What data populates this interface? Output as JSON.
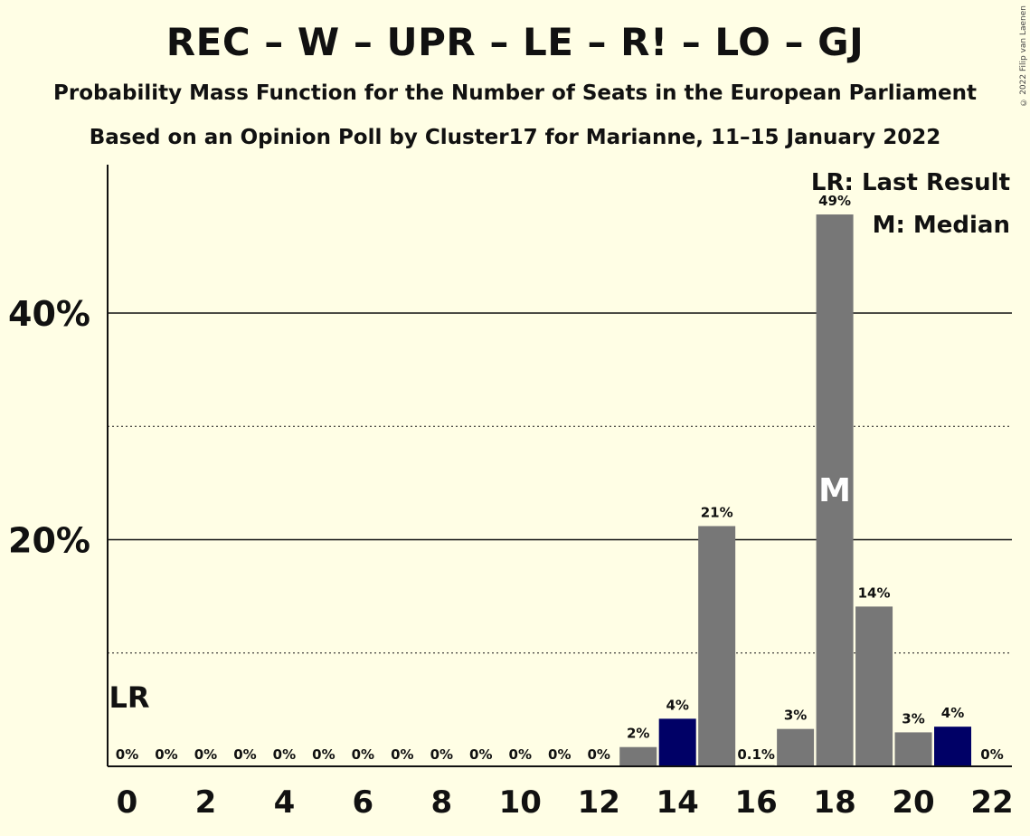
{
  "header": {
    "title": "REC – W – UPR – LE – R! – LO – GJ",
    "subtitle1": "Probability Mass Function for the Number of Seats in the European Parliament",
    "subtitle2": "Based on an Opinion Poll by Cluster17 for Marianne, 11–15 January 2022",
    "copyright": "© 2022 Filip van Laenen"
  },
  "legend": {
    "last_result": "LR: Last Result",
    "median": "M: Median"
  },
  "markers": {
    "last_result_label": "LR",
    "last_result_seat": 0,
    "median_label": "M",
    "median_seat": 18
  },
  "colors": {
    "background": "#FFFEE5",
    "bar": "#777777",
    "highlight_bar": "#000066",
    "text": "#111111"
  },
  "chart_data": {
    "type": "bar",
    "x": [
      0,
      1,
      2,
      3,
      4,
      5,
      6,
      7,
      8,
      9,
      10,
      11,
      12,
      13,
      14,
      15,
      16,
      17,
      18,
      19,
      20,
      21,
      22
    ],
    "values": [
      0,
      0,
      0,
      0,
      0,
      0,
      0,
      0,
      0,
      0,
      0,
      0,
      0,
      1.7,
      4.2,
      21.2,
      0.1,
      3.3,
      48.7,
      14.1,
      3.0,
      3.5,
      0
    ],
    "labels": [
      "0%",
      "0%",
      "0%",
      "0%",
      "0%",
      "0%",
      "0%",
      "0%",
      "0%",
      "0%",
      "0%",
      "0%",
      "0%",
      "2%",
      "4%",
      "21%",
      "0.1%",
      "3%",
      "49%",
      "14%",
      "3%",
      "4%",
      "0%"
    ],
    "highlight": [
      14,
      21
    ],
    "x_ticks": [
      "0",
      "2",
      "4",
      "6",
      "8",
      "10",
      "12",
      "14",
      "16",
      "18",
      "20",
      "22"
    ],
    "x_tick_values": [
      0,
      2,
      4,
      6,
      8,
      10,
      12,
      14,
      16,
      18,
      20,
      22
    ],
    "y_ticks": [
      "20%",
      "40%"
    ],
    "y_tick_values": [
      20,
      40
    ],
    "y_minor_gridlines": [
      10,
      30
    ],
    "ylim": [
      0,
      53
    ],
    "xlim": [
      -0.5,
      22.5
    ],
    "grid": true,
    "legend_position": "top-right"
  }
}
